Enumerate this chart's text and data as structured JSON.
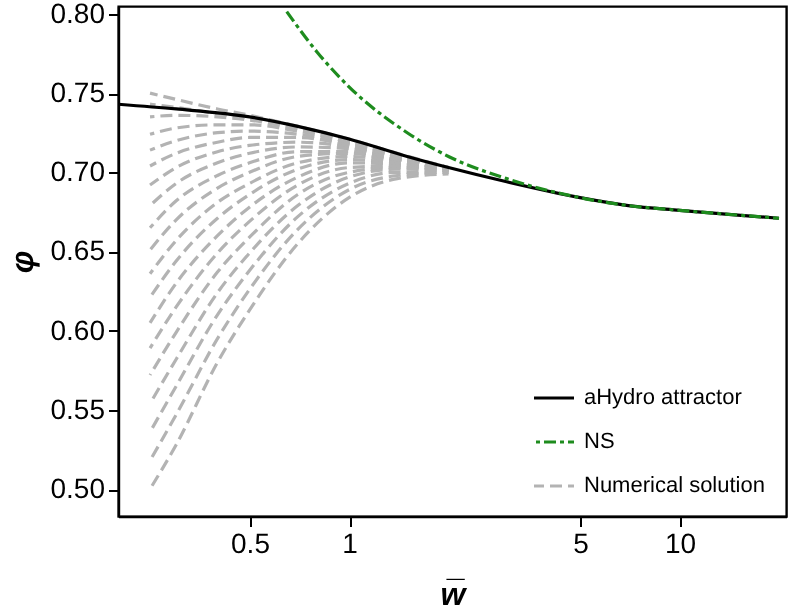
{
  "chart_data": {
    "type": "line",
    "xlabel": "w̅",
    "ylabel": "φ",
    "log": "x",
    "xlim": [
      0.2,
      21
    ],
    "ylim": [
      0.483,
      0.805
    ],
    "xticks": [
      0.5,
      1,
      5,
      10
    ],
    "yticks": [
      {
        "value": 0.5,
        "label": "0.50"
      },
      {
        "value": 0.55,
        "label": "0.55"
      },
      {
        "value": 0.6,
        "label": "0.60"
      },
      {
        "value": 0.65,
        "label": "0.65"
      },
      {
        "value": 0.7,
        "label": "0.70"
      },
      {
        "value": 0.75,
        "label": "0.75"
      },
      {
        "value": 0.8,
        "label": "0.80"
      }
    ],
    "grid": false,
    "legend": "bottom right",
    "marker": "none",
    "series": [
      {
        "name": "aHydro attractor",
        "color": "#000000",
        "line_style": "solid",
        "x": [
          0.2,
          0.3,
          0.5,
          0.7,
          1,
          1.5,
          2,
          3,
          5,
          7,
          10,
          15,
          20
        ],
        "values": [
          0.743,
          0.74,
          0.735,
          0.729,
          0.721,
          0.71,
          0.703,
          0.694,
          0.684,
          0.679,
          0.676,
          0.673,
          0.671
        ]
      },
      {
        "name": "NS",
        "color": "#1e8c1e",
        "line_style": "dashdot",
        "x": [
          0.64,
          0.8,
          1,
          1.5,
          2,
          3,
          5,
          7,
          10,
          15,
          20
        ],
        "values": [
          0.803,
          0.776,
          0.754,
          0.725,
          0.71,
          0.696,
          0.684,
          0.679,
          0.676,
          0.673,
          0.671
        ]
      },
      {
        "name": "Numerical solution",
        "color": "#b3b3b3",
        "line_style": "dashed",
        "x": [
          0.25,
          0.3,
          0.4,
          0.5,
          0.7,
          1,
          1.4,
          2
        ],
        "values": [
          0.75,
          0.746,
          0.74,
          0.736,
          0.729,
          0.721,
          0.712,
          0.703
        ]
      },
      {
        "color": "#b3b3b3",
        "line_style": "dashed",
        "x": [
          0.25,
          0.3,
          0.4,
          0.5,
          0.7,
          1,
          1.4,
          2
        ],
        "values": [
          0.743,
          0.741,
          0.737,
          0.734,
          0.728,
          0.72,
          0.711,
          0.703
        ]
      },
      {
        "color": "#b3b3b3",
        "line_style": "dashed",
        "x": [
          0.25,
          0.3,
          0.4,
          0.5,
          0.7,
          1,
          1.4,
          2
        ],
        "values": [
          0.735,
          0.736,
          0.735,
          0.733,
          0.727,
          0.719,
          0.711,
          0.703
        ]
      },
      {
        "color": "#b3b3b3",
        "line_style": "dashed",
        "x": [
          0.25,
          0.3,
          0.4,
          0.5,
          0.7,
          1,
          1.4,
          2
        ],
        "values": [
          0.724,
          0.728,
          0.73,
          0.73,
          0.726,
          0.719,
          0.71,
          0.703
        ]
      },
      {
        "color": "#b3b3b3",
        "line_style": "dashed",
        "x": [
          0.25,
          0.3,
          0.4,
          0.5,
          0.7,
          1,
          1.4,
          2
        ],
        "values": [
          0.714,
          0.72,
          0.725,
          0.726,
          0.724,
          0.718,
          0.71,
          0.702
        ]
      },
      {
        "color": "#b3b3b3",
        "line_style": "dashed",
        "x": [
          0.25,
          0.3,
          0.4,
          0.5,
          0.7,
          1,
          1.4,
          2
        ],
        "values": [
          0.704,
          0.712,
          0.719,
          0.722,
          0.722,
          0.717,
          0.709,
          0.702
        ]
      },
      {
        "color": "#b3b3b3",
        "line_style": "dashed",
        "x": [
          0.25,
          0.3,
          0.4,
          0.5,
          0.7,
          1,
          1.4,
          2
        ],
        "values": [
          0.692,
          0.703,
          0.713,
          0.717,
          0.719,
          0.716,
          0.709,
          0.702
        ]
      },
      {
        "color": "#b3b3b3",
        "line_style": "dashed",
        "x": [
          0.25,
          0.3,
          0.4,
          0.5,
          0.7,
          1,
          1.4,
          2
        ],
        "values": [
          0.679,
          0.693,
          0.706,
          0.712,
          0.716,
          0.715,
          0.708,
          0.702
        ]
      },
      {
        "color": "#b3b3b3",
        "line_style": "dashed",
        "x": [
          0.25,
          0.3,
          0.4,
          0.5,
          0.7,
          1,
          1.4,
          2
        ],
        "values": [
          0.665,
          0.682,
          0.698,
          0.706,
          0.713,
          0.713,
          0.708,
          0.702
        ]
      },
      {
        "color": "#b3b3b3",
        "line_style": "dashed",
        "x": [
          0.25,
          0.3,
          0.4,
          0.5,
          0.7,
          1,
          1.4,
          2
        ],
        "values": [
          0.651,
          0.67,
          0.69,
          0.7,
          0.71,
          0.712,
          0.707,
          0.702
        ]
      },
      {
        "color": "#b3b3b3",
        "line_style": "dashed",
        "x": [
          0.25,
          0.3,
          0.4,
          0.5,
          0.7,
          1,
          1.4,
          2
        ],
        "values": [
          0.636,
          0.657,
          0.681,
          0.693,
          0.706,
          0.71,
          0.707,
          0.702
        ]
      },
      {
        "color": "#b3b3b3",
        "line_style": "dashed",
        "x": [
          0.25,
          0.3,
          0.4,
          0.5,
          0.7,
          1,
          1.4,
          2
        ],
        "values": [
          0.621,
          0.644,
          0.671,
          0.686,
          0.702,
          0.708,
          0.706,
          0.702
        ]
      },
      {
        "color": "#b3b3b3",
        "line_style": "dashed",
        "x": [
          0.25,
          0.3,
          0.4,
          0.5,
          0.7,
          1,
          1.4,
          2
        ],
        "values": [
          0.605,
          0.63,
          0.66,
          0.678,
          0.697,
          0.706,
          0.705,
          0.701
        ]
      },
      {
        "color": "#b3b3b3",
        "line_style": "dashed",
        "x": [
          0.25,
          0.3,
          0.4,
          0.5,
          0.7,
          1,
          1.4,
          2
        ],
        "values": [
          0.589,
          0.615,
          0.649,
          0.669,
          0.692,
          0.703,
          0.704,
          0.701
        ]
      },
      {
        "color": "#b3b3b3",
        "line_style": "dashed",
        "x": [
          0.25,
          0.3,
          0.4,
          0.5,
          0.7,
          1,
          1.4,
          2
        ],
        "values": [
          0.572,
          0.599,
          0.637,
          0.659,
          0.686,
          0.7,
          0.703,
          0.701
        ]
      },
      {
        "color": "#b3b3b3",
        "line_style": "dashed",
        "x": [
          0.25,
          0.3,
          0.4,
          0.5,
          0.7,
          1,
          1.4,
          2
        ],
        "values": [
          0.554,
          0.582,
          0.624,
          0.649,
          0.679,
          0.697,
          0.702,
          0.701
        ]
      },
      {
        "color": "#b3b3b3",
        "line_style": "dashed",
        "x": [
          0.25,
          0.3,
          0.4,
          0.5,
          0.7,
          1,
          1.4,
          2
        ],
        "values": [
          0.536,
          0.565,
          0.61,
          0.638,
          0.672,
          0.693,
          0.7,
          0.7
        ]
      },
      {
        "color": "#b3b3b3",
        "line_style": "dashed",
        "x": [
          0.25,
          0.3,
          0.4,
          0.5,
          0.7,
          1,
          1.4,
          2
        ],
        "values": [
          0.518,
          0.547,
          0.595,
          0.626,
          0.664,
          0.689,
          0.698,
          0.7
        ]
      },
      {
        "color": "#b3b3b3",
        "line_style": "dashed",
        "x": [
          0.25,
          0.3,
          0.4,
          0.5,
          0.7,
          1,
          1.4,
          2
        ],
        "values": [
          0.5,
          0.528,
          0.58,
          0.613,
          0.655,
          0.684,
          0.696,
          0.699
        ]
      }
    ]
  }
}
